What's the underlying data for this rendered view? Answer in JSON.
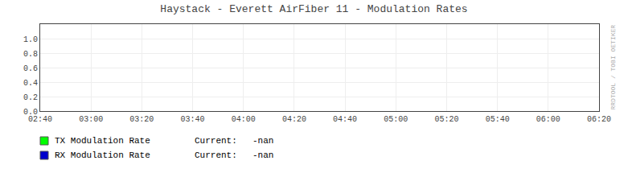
{
  "chart_data": {
    "type": "line",
    "title": "Haystack - Everett AirFiber 11 - Modulation Rates",
    "categories": [
      "02:40",
      "03:00",
      "03:20",
      "03:40",
      "04:00",
      "04:20",
      "04:40",
      "05:00",
      "05:20",
      "05:40",
      "06:00",
      "06:20"
    ],
    "series": [
      {
        "name": "TX Modulation Rate",
        "color": "#00ff00",
        "values": [
          null,
          null,
          null,
          null,
          null,
          null,
          null,
          null,
          null,
          null,
          null,
          null
        ],
        "current": "-nan"
      },
      {
        "name": "RX Modulation Rate",
        "color": "#0000cc",
        "values": [
          null,
          null,
          null,
          null,
          null,
          null,
          null,
          null,
          null,
          null,
          null,
          null
        ],
        "current": "-nan"
      }
    ],
    "current_label": "Current:",
    "annotations": [
      "RRDTOOL / TOBI OETIKER"
    ],
    "ylim": [
      0.0,
      1.2
    ],
    "yticks": [
      {
        "value": 0,
        "label": "0.0"
      },
      0.2,
      0.4,
      0.6,
      0.8,
      {
        "value": 1,
        "label": "1.0"
      }
    ],
    "grid": true
  }
}
